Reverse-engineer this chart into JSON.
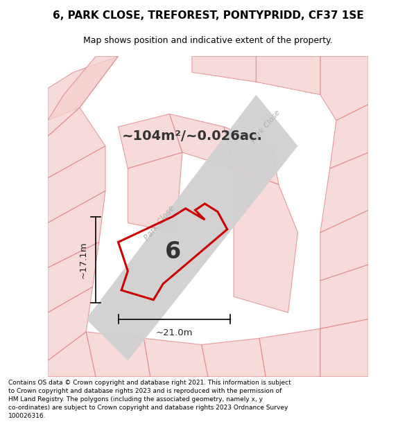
{
  "title": "6, PARK CLOSE, TREFOREST, PONTYPRIDD, CF37 1SE",
  "subtitle": "Map shows position and indicative extent of the property.",
  "footer_text": "Contains OS data © Crown copyright and database right 2021. This information is subject\nto Crown copyright and database rights 2023 and is reproduced with the permission of\nHM Land Registry. The polygons (including the associated geometry, namely x, y\nco-ordinates) are subject to Crown copyright and database rights 2023 Ordnance Survey\n100026316.",
  "area_text": "~104m²/~0.026ac.",
  "dim_width": "~21.0m",
  "dim_height": "~17.1m",
  "label_number": "6",
  "bg_color": "#ffffff",
  "map_bg": "#f2f2f2",
  "road_color": "#d0d0d0",
  "prop_edge_color": "#cc0000",
  "prop_fill": "none",
  "bg_poly_face": "#f5d0d0",
  "bg_poly_edge": "#e08080",
  "road_label": "Park Close",
  "road_label2": "Park Close",
  "road_label_color": "#aaaaaa",
  "dim_color": "#222222",
  "number_color": "#333333"
}
